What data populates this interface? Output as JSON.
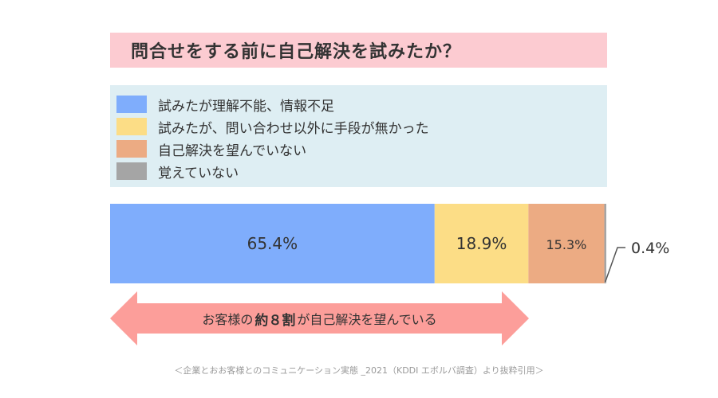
{
  "title": "問合せをする前に自己解決を試みたか？",
  "chart_data": {
    "type": "bar",
    "orientation": "horizontal-stacked-100",
    "categories": [
      "試みたが理解不能、情報不足",
      "試みたが、問い合わせ以外に手段が無かった",
      "自己解決を望んでいない",
      "覚えていない"
    ],
    "values": [
      65.4,
      18.9,
      15.3,
      0.4
    ],
    "data_labels": [
      "65.4%",
      "18.9%",
      "15.3%",
      "0.4%"
    ],
    "colors": [
      "#7fadfc",
      "#fcdd86",
      "#ecab83",
      "#a5a5a5"
    ],
    "legend": "top",
    "grid": false
  },
  "annotation": {
    "prefix": "お客様の",
    "emphasis": "約８割",
    "suffix": "が自己解決を望んでいる",
    "color": "#fc9e9a"
  },
  "source": "＜企業とおお客様とのコミュニケーション実態 _2021（KDDI エボルバ調査）より抜粋引用＞"
}
